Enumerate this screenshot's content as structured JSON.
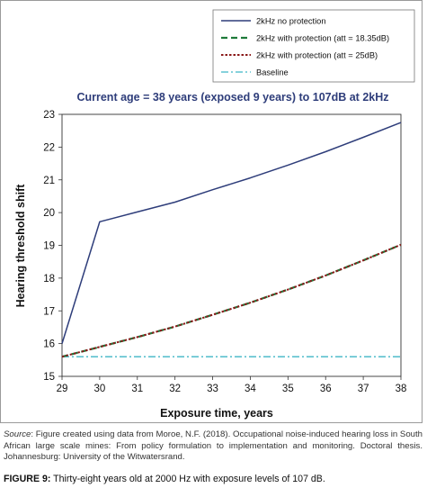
{
  "chart_data": {
    "type": "line",
    "title": "Current age = 38 years (exposed 9 years) to 107dB at 2kHz",
    "xlabel": "Exposure time, years",
    "ylabel": "Hearing threshold shift",
    "xlim": [
      29,
      38
    ],
    "ylim": [
      15,
      23
    ],
    "xticks": [
      29,
      30,
      31,
      32,
      33,
      34,
      35,
      36,
      37,
      38
    ],
    "yticks": [
      15,
      16,
      17,
      18,
      19,
      20,
      21,
      22,
      23
    ],
    "grid": false,
    "legend_position": "top-right",
    "series": [
      {
        "name": "2kHz no protection",
        "color": "#2e3d7a",
        "style": "solid",
        "x": [
          29,
          30,
          31,
          32,
          33,
          34,
          35,
          36,
          37,
          38
        ],
        "y": [
          16.0,
          19.72,
          20.02,
          20.32,
          20.7,
          21.06,
          21.45,
          21.86,
          22.3,
          22.75
        ]
      },
      {
        "name": "2kHz with protection (att = 18.35dB)",
        "color": "#1e7a3a",
        "style": "dashed",
        "x": [
          29,
          30,
          31,
          32,
          33,
          34,
          35,
          36,
          37,
          38
        ],
        "y": [
          15.6,
          15.9,
          16.2,
          16.52,
          16.88,
          17.25,
          17.65,
          18.08,
          18.54,
          19.02
        ]
      },
      {
        "name": "2kHz with protection (att = 25dB)",
        "color": "#8b1a1a",
        "style": "dotted",
        "x": [
          29,
          30,
          31,
          32,
          33,
          34,
          35,
          36,
          37,
          38
        ],
        "y": [
          15.6,
          15.9,
          16.2,
          16.52,
          16.88,
          17.25,
          17.65,
          18.08,
          18.54,
          19.02
        ]
      },
      {
        "name": "Baseline",
        "color": "#3fb6c6",
        "style": "dashdot",
        "x": [
          29,
          30,
          31,
          32,
          33,
          34,
          35,
          36,
          37,
          38
        ],
        "y": [
          15.6,
          15.6,
          15.6,
          15.6,
          15.6,
          15.6,
          15.6,
          15.6,
          15.6,
          15.6
        ]
      }
    ]
  },
  "source": {
    "label": "Source",
    "text": ": Figure created using data from Moroe, N.F. (2018). Occupational noise-induced hearing loss in South African large scale mines: From policy formulation to implementation and monitoring. Doctoral thesis. Johannesburg: University of the Witwatersrand."
  },
  "caption": {
    "label": "FIGURE 9:",
    "text": " Thirty-eight years old at 2000 Hz with exposure levels of 107 dB."
  }
}
